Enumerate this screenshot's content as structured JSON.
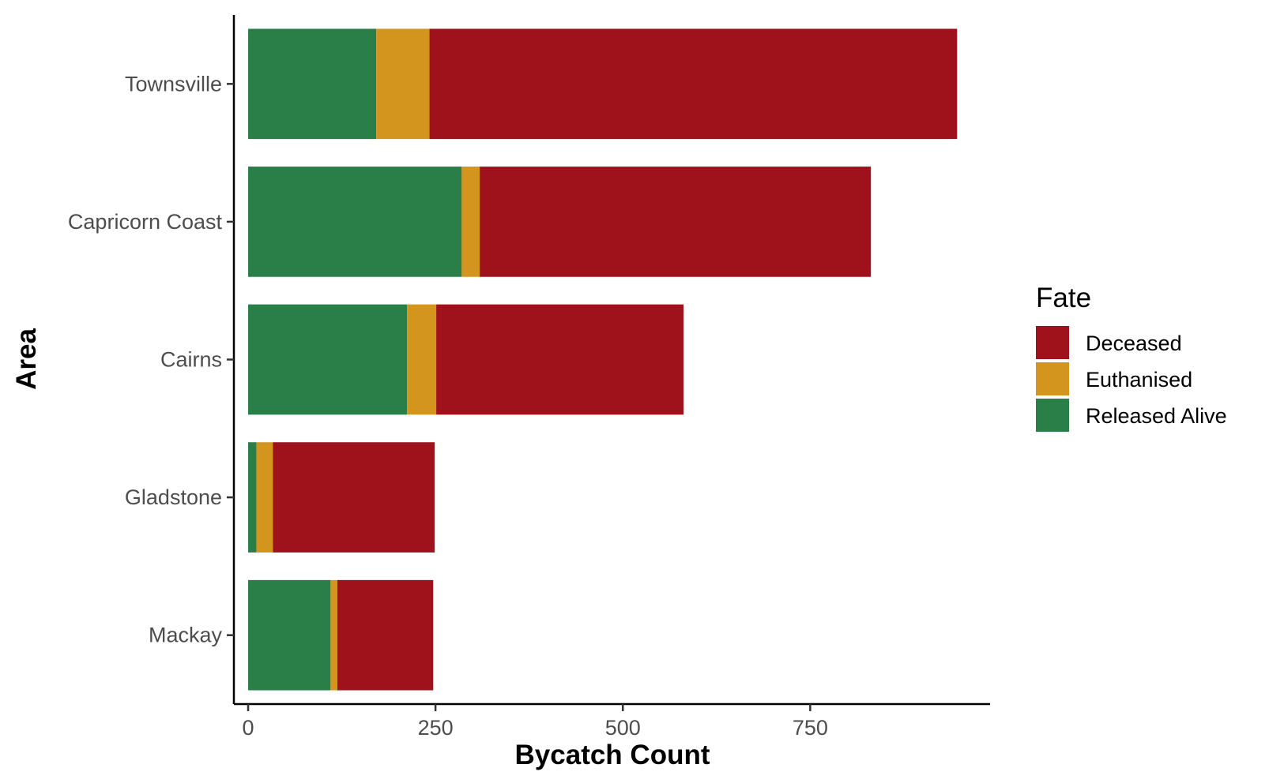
{
  "chart_data": {
    "type": "bar",
    "orientation": "horizontal",
    "stacked": true,
    "xlabel": "Bycatch Count",
    "ylabel": "Area",
    "xlim": [
      -19,
      990
    ],
    "x_ticks": [
      "0",
      "250",
      "500",
      "750"
    ],
    "x_tick_values": [
      0,
      250,
      500,
      750
    ],
    "categories": [
      "Townsville",
      "Capricorn Coast",
      "Cairns",
      "Gladstone",
      "Mackay"
    ],
    "series": [
      {
        "name": "Released Alive",
        "color": "#2a7f48",
        "values": [
          171,
          285,
          212,
          11,
          110
        ]
      },
      {
        "name": "Euthanised",
        "color": "#d3951d",
        "values": [
          71,
          24,
          39,
          22,
          9
        ]
      },
      {
        "name": "Deceased",
        "color": "#a0121b",
        "values": [
          704,
          522,
          330,
          216,
          128
        ]
      }
    ],
    "legend": {
      "title": "Fate",
      "position": "right",
      "entries": [
        "Deceased",
        "Euthanised",
        "Released Alive"
      ]
    },
    "grid": false
  }
}
